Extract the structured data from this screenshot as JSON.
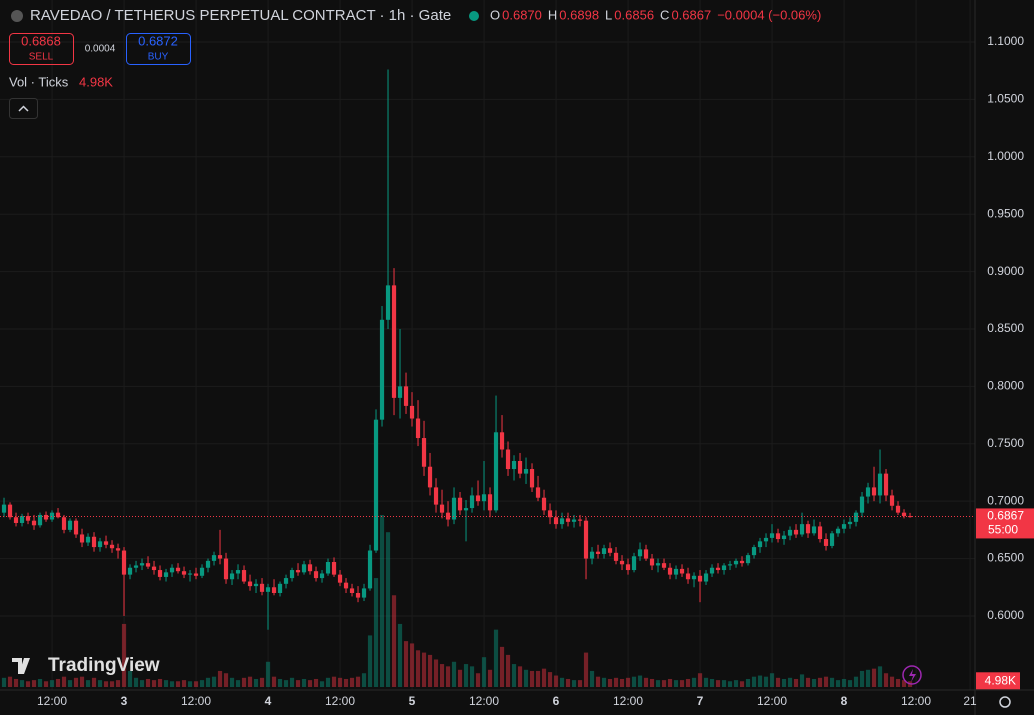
{
  "header": {
    "title": "RAVEDAO / TETHERUS PERPETUAL CONTRACT · 1h · Gate",
    "ohlc": [
      [
        "O",
        "0.6870"
      ],
      [
        "H",
        "0.6898"
      ],
      [
        "L",
        "0.6856"
      ],
      [
        "C",
        "0.6867"
      ]
    ],
    "change": "−0.0004 (−0.06%)"
  },
  "trade": {
    "sell_price": "0.6868",
    "sell": "SELL",
    "spread": "0.0004",
    "buy_price": "0.6872",
    "buy": "BUY"
  },
  "volume_legend": {
    "label": "Vol · Ticks",
    "value": "4.98K"
  },
  "brand": "TradingView",
  "chart_data": {
    "type": "candlestick",
    "up_color": "#089981",
    "down_color": "#f23645",
    "xlim": [
      -0.67,
      161.83
    ],
    "ylim": [
      0.5355,
      1.1366
    ],
    "xticks": [
      {
        "value": 8,
        "label": "12:00"
      },
      {
        "value": 20,
        "label": "3"
      },
      {
        "value": 32,
        "label": "12:00"
      },
      {
        "value": 44,
        "label": "4"
      },
      {
        "value": 56,
        "label": "12:00"
      },
      {
        "value": 68,
        "label": "5"
      },
      {
        "value": 80,
        "label": "12:00"
      },
      {
        "value": 92,
        "label": "6"
      },
      {
        "value": 104,
        "label": "12:00"
      },
      {
        "value": 116,
        "label": "7"
      },
      {
        "value": 128,
        "label": "12:00"
      },
      {
        "value": 140,
        "label": "8"
      },
      {
        "value": 152,
        "label": "12:00"
      },
      {
        "value": 161,
        "label": "21"
      }
    ],
    "yticks": [
      {
        "value": 0.6,
        "label": "0.6000"
      },
      {
        "value": 0.65,
        "label": "0.6500"
      },
      {
        "value": 0.7,
        "label": "0.7000"
      },
      {
        "value": 0.75,
        "label": "0.7500"
      },
      {
        "value": 0.8,
        "label": "0.8000"
      },
      {
        "value": 0.85,
        "label": "0.8500"
      },
      {
        "value": 0.9,
        "label": "0.9000"
      },
      {
        "value": 0.95,
        "label": "0.9500"
      },
      {
        "value": 1.0,
        "label": "1.0000"
      },
      {
        "value": 1.05,
        "label": "1.0500"
      },
      {
        "value": 1.1,
        "label": "1.1000"
      }
    ],
    "last_price": {
      "value": 0.6867,
      "label": "0.6867",
      "countdown": "55:00"
    },
    "last_volume": {
      "value": 4.98,
      "label": "4.98K"
    },
    "candles": [
      [
        0.69,
        0.703,
        0.686,
        0.697,
        8
      ],
      [
        0.697,
        0.699,
        0.684,
        0.686,
        9
      ],
      [
        0.686,
        0.69,
        0.678,
        0.681,
        7
      ],
      [
        0.681,
        0.689,
        0.678,
        0.687,
        6
      ],
      [
        0.687,
        0.69,
        0.68,
        0.683,
        5
      ],
      [
        0.683,
        0.688,
        0.675,
        0.679,
        6
      ],
      [
        0.679,
        0.69,
        0.677,
        0.688,
        7
      ],
      [
        0.688,
        0.691,
        0.682,
        0.684,
        5
      ],
      [
        0.684,
        0.692,
        0.682,
        0.69,
        6
      ],
      [
        0.69,
        0.694,
        0.685,
        0.686,
        7
      ],
      [
        0.686,
        0.688,
        0.672,
        0.675,
        9
      ],
      [
        0.675,
        0.685,
        0.673,
        0.683,
        6
      ],
      [
        0.683,
        0.685,
        0.668,
        0.671,
        8
      ],
      [
        0.671,
        0.676,
        0.66,
        0.664,
        9
      ],
      [
        0.664,
        0.672,
        0.661,
        0.669,
        6
      ],
      [
        0.669,
        0.673,
        0.656,
        0.66,
        8
      ],
      [
        0.66,
        0.668,
        0.656,
        0.665,
        6
      ],
      [
        0.665,
        0.67,
        0.659,
        0.662,
        5
      ],
      [
        0.662,
        0.666,
        0.655,
        0.659,
        5
      ],
      [
        0.659,
        0.663,
        0.65,
        0.657,
        6
      ],
      [
        0.657,
        0.66,
        0.6,
        0.636,
        55
      ],
      [
        0.636,
        0.645,
        0.632,
        0.642,
        14
      ],
      [
        0.642,
        0.648,
        0.638,
        0.644,
        8
      ],
      [
        0.644,
        0.65,
        0.64,
        0.646,
        6
      ],
      [
        0.646,
        0.652,
        0.641,
        0.643,
        7
      ],
      [
        0.643,
        0.648,
        0.636,
        0.64,
        6
      ],
      [
        0.64,
        0.644,
        0.631,
        0.634,
        7
      ],
      [
        0.634,
        0.641,
        0.63,
        0.638,
        6
      ],
      [
        0.638,
        0.645,
        0.634,
        0.642,
        5
      ],
      [
        0.642,
        0.646,
        0.637,
        0.639,
        5
      ],
      [
        0.639,
        0.643,
        0.633,
        0.636,
        6
      ],
      [
        0.636,
        0.64,
        0.63,
        0.637,
        5
      ],
      [
        0.637,
        0.642,
        0.632,
        0.635,
        5
      ],
      [
        0.635,
        0.645,
        0.633,
        0.642,
        6
      ],
      [
        0.642,
        0.65,
        0.638,
        0.648,
        8
      ],
      [
        0.648,
        0.656,
        0.644,
        0.653,
        9
      ],
      [
        0.653,
        0.675,
        0.645,
        0.65,
        14
      ],
      [
        0.65,
        0.655,
        0.628,
        0.632,
        12
      ],
      [
        0.632,
        0.64,
        0.627,
        0.637,
        8
      ],
      [
        0.637,
        0.645,
        0.632,
        0.64,
        6
      ],
      [
        0.64,
        0.644,
        0.628,
        0.63,
        8
      ],
      [
        0.63,
        0.636,
        0.622,
        0.626,
        9
      ],
      [
        0.626,
        0.632,
        0.62,
        0.628,
        7
      ],
      [
        0.628,
        0.633,
        0.618,
        0.621,
        8
      ],
      [
        0.621,
        0.628,
        0.588,
        0.625,
        22
      ],
      [
        0.625,
        0.632,
        0.618,
        0.62,
        9
      ],
      [
        0.62,
        0.63,
        0.617,
        0.628,
        7
      ],
      [
        0.628,
        0.636,
        0.624,
        0.633,
        6
      ],
      [
        0.633,
        0.642,
        0.63,
        0.64,
        8
      ],
      [
        0.64,
        0.646,
        0.635,
        0.638,
        6
      ],
      [
        0.638,
        0.648,
        0.636,
        0.645,
        7
      ],
      [
        0.645,
        0.649,
        0.636,
        0.639,
        6
      ],
      [
        0.639,
        0.643,
        0.63,
        0.633,
        7
      ],
      [
        0.633,
        0.64,
        0.629,
        0.637,
        5
      ],
      [
        0.637,
        0.65,
        0.635,
        0.647,
        8
      ],
      [
        0.647,
        0.651,
        0.634,
        0.636,
        9
      ],
      [
        0.636,
        0.64,
        0.626,
        0.629,
        8
      ],
      [
        0.629,
        0.633,
        0.62,
        0.624,
        7
      ],
      [
        0.624,
        0.628,
        0.617,
        0.62,
        8
      ],
      [
        0.62,
        0.626,
        0.612,
        0.616,
        9
      ],
      [
        0.616,
        0.628,
        0.613,
        0.624,
        12
      ],
      [
        0.624,
        0.662,
        0.622,
        0.657,
        45
      ],
      [
        0.657,
        0.78,
        0.655,
        0.771,
        95
      ],
      [
        0.771,
        0.87,
        0.765,
        0.858,
        150
      ],
      [
        0.858,
        1.076,
        0.85,
        0.888,
        135
      ],
      [
        0.888,
        0.903,
        0.775,
        0.79,
        80
      ],
      [
        0.79,
        0.85,
        0.772,
        0.8,
        55
      ],
      [
        0.8,
        0.812,
        0.776,
        0.783,
        40
      ],
      [
        0.783,
        0.795,
        0.765,
        0.772,
        38
      ],
      [
        0.772,
        0.788,
        0.748,
        0.755,
        32
      ],
      [
        0.755,
        0.77,
        0.722,
        0.73,
        30
      ],
      [
        0.73,
        0.742,
        0.705,
        0.712,
        28
      ],
      [
        0.712,
        0.72,
        0.69,
        0.697,
        24
      ],
      [
        0.697,
        0.71,
        0.685,
        0.69,
        20
      ],
      [
        0.69,
        0.7,
        0.678,
        0.684,
        18
      ],
      [
        0.684,
        0.712,
        0.68,
        0.703,
        22
      ],
      [
        0.703,
        0.708,
        0.688,
        0.692,
        15
      ],
      [
        0.692,
        0.701,
        0.665,
        0.694,
        20
      ],
      [
        0.694,
        0.712,
        0.69,
        0.705,
        18
      ],
      [
        0.705,
        0.718,
        0.696,
        0.7,
        12
      ],
      [
        0.7,
        0.735,
        0.692,
        0.706,
        26
      ],
      [
        0.706,
        0.712,
        0.686,
        0.692,
        15
      ],
      [
        0.692,
        0.792,
        0.69,
        0.76,
        50
      ],
      [
        0.76,
        0.775,
        0.738,
        0.745,
        35
      ],
      [
        0.745,
        0.752,
        0.722,
        0.728,
        28
      ],
      [
        0.728,
        0.74,
        0.718,
        0.735,
        20
      ],
      [
        0.735,
        0.742,
        0.72,
        0.724,
        18
      ],
      [
        0.724,
        0.738,
        0.715,
        0.728,
        15
      ],
      [
        0.728,
        0.733,
        0.708,
        0.712,
        14
      ],
      [
        0.712,
        0.722,
        0.7,
        0.703,
        14
      ],
      [
        0.703,
        0.71,
        0.688,
        0.692,
        16
      ],
      [
        0.692,
        0.698,
        0.68,
        0.686,
        13
      ],
      [
        0.686,
        0.692,
        0.676,
        0.68,
        10
      ],
      [
        0.68,
        0.69,
        0.676,
        0.685,
        8
      ],
      [
        0.685,
        0.69,
        0.678,
        0.682,
        7
      ],
      [
        0.682,
        0.688,
        0.677,
        0.684,
        6
      ],
      [
        0.684,
        0.688,
        0.678,
        0.683,
        6
      ],
      [
        0.683,
        0.686,
        0.632,
        0.65,
        30
      ],
      [
        0.65,
        0.66,
        0.645,
        0.656,
        14
      ],
      [
        0.656,
        0.662,
        0.65,
        0.654,
        9
      ],
      [
        0.654,
        0.662,
        0.65,
        0.659,
        8
      ],
      [
        0.659,
        0.664,
        0.652,
        0.655,
        7
      ],
      [
        0.655,
        0.66,
        0.645,
        0.648,
        8
      ],
      [
        0.648,
        0.653,
        0.64,
        0.645,
        7
      ],
      [
        0.645,
        0.65,
        0.636,
        0.64,
        8
      ],
      [
        0.64,
        0.655,
        0.638,
        0.652,
        9
      ],
      [
        0.652,
        0.664,
        0.648,
        0.658,
        10
      ],
      [
        0.658,
        0.662,
        0.648,
        0.65,
        8
      ],
      [
        0.65,
        0.654,
        0.64,
        0.644,
        7
      ],
      [
        0.644,
        0.65,
        0.638,
        0.646,
        6
      ],
      [
        0.646,
        0.65,
        0.64,
        0.642,
        6
      ],
      [
        0.642,
        0.646,
        0.632,
        0.636,
        7
      ],
      [
        0.636,
        0.644,
        0.632,
        0.641,
        6
      ],
      [
        0.641,
        0.645,
        0.634,
        0.637,
        6
      ],
      [
        0.637,
        0.642,
        0.628,
        0.632,
        7
      ],
      [
        0.632,
        0.638,
        0.625,
        0.635,
        8
      ],
      [
        0.635,
        0.64,
        0.612,
        0.63,
        12
      ],
      [
        0.63,
        0.64,
        0.627,
        0.637,
        8
      ],
      [
        0.637,
        0.645,
        0.634,
        0.642,
        7
      ],
      [
        0.642,
        0.646,
        0.637,
        0.64,
        6
      ],
      [
        0.64,
        0.646,
        0.636,
        0.644,
        6
      ],
      [
        0.644,
        0.648,
        0.64,
        0.645,
        5
      ],
      [
        0.645,
        0.65,
        0.642,
        0.648,
        6
      ],
      [
        0.648,
        0.652,
        0.643,
        0.646,
        5
      ],
      [
        0.646,
        0.655,
        0.644,
        0.653,
        7
      ],
      [
        0.653,
        0.662,
        0.65,
        0.66,
        9
      ],
      [
        0.66,
        0.668,
        0.655,
        0.665,
        10
      ],
      [
        0.665,
        0.672,
        0.66,
        0.668,
        9
      ],
      [
        0.668,
        0.68,
        0.664,
        0.672,
        12
      ],
      [
        0.672,
        0.676,
        0.664,
        0.667,
        8
      ],
      [
        0.667,
        0.674,
        0.662,
        0.67,
        7
      ],
      [
        0.67,
        0.678,
        0.666,
        0.675,
        8
      ],
      [
        0.675,
        0.68,
        0.668,
        0.671,
        7
      ],
      [
        0.671,
        0.69,
        0.669,
        0.68,
        11
      ],
      [
        0.68,
        0.683,
        0.668,
        0.672,
        8
      ],
      [
        0.672,
        0.684,
        0.67,
        0.678,
        7
      ],
      [
        0.678,
        0.682,
        0.664,
        0.667,
        8
      ],
      [
        0.667,
        0.672,
        0.657,
        0.661,
        9
      ],
      [
        0.661,
        0.674,
        0.659,
        0.672,
        8
      ],
      [
        0.672,
        0.678,
        0.669,
        0.676,
        6
      ],
      [
        0.676,
        0.684,
        0.672,
        0.68,
        7
      ],
      [
        0.68,
        0.686,
        0.676,
        0.682,
        6
      ],
      [
        0.682,
        0.692,
        0.678,
        0.69,
        9
      ],
      [
        0.69,
        0.708,
        0.686,
        0.704,
        14
      ],
      [
        0.704,
        0.716,
        0.698,
        0.712,
        15
      ],
      [
        0.712,
        0.73,
        0.7,
        0.705,
        16
      ],
      [
        0.705,
        0.745,
        0.698,
        0.724,
        18
      ],
      [
        0.724,
        0.728,
        0.7,
        0.705,
        12
      ],
      [
        0.705,
        0.71,
        0.692,
        0.696,
        9
      ],
      [
        0.696,
        0.7,
        0.688,
        0.69,
        7
      ],
      [
        0.69,
        0.693,
        0.685,
        0.687,
        6
      ],
      [
        0.687,
        0.6898,
        0.6856,
        0.6867,
        4.98
      ]
    ]
  }
}
